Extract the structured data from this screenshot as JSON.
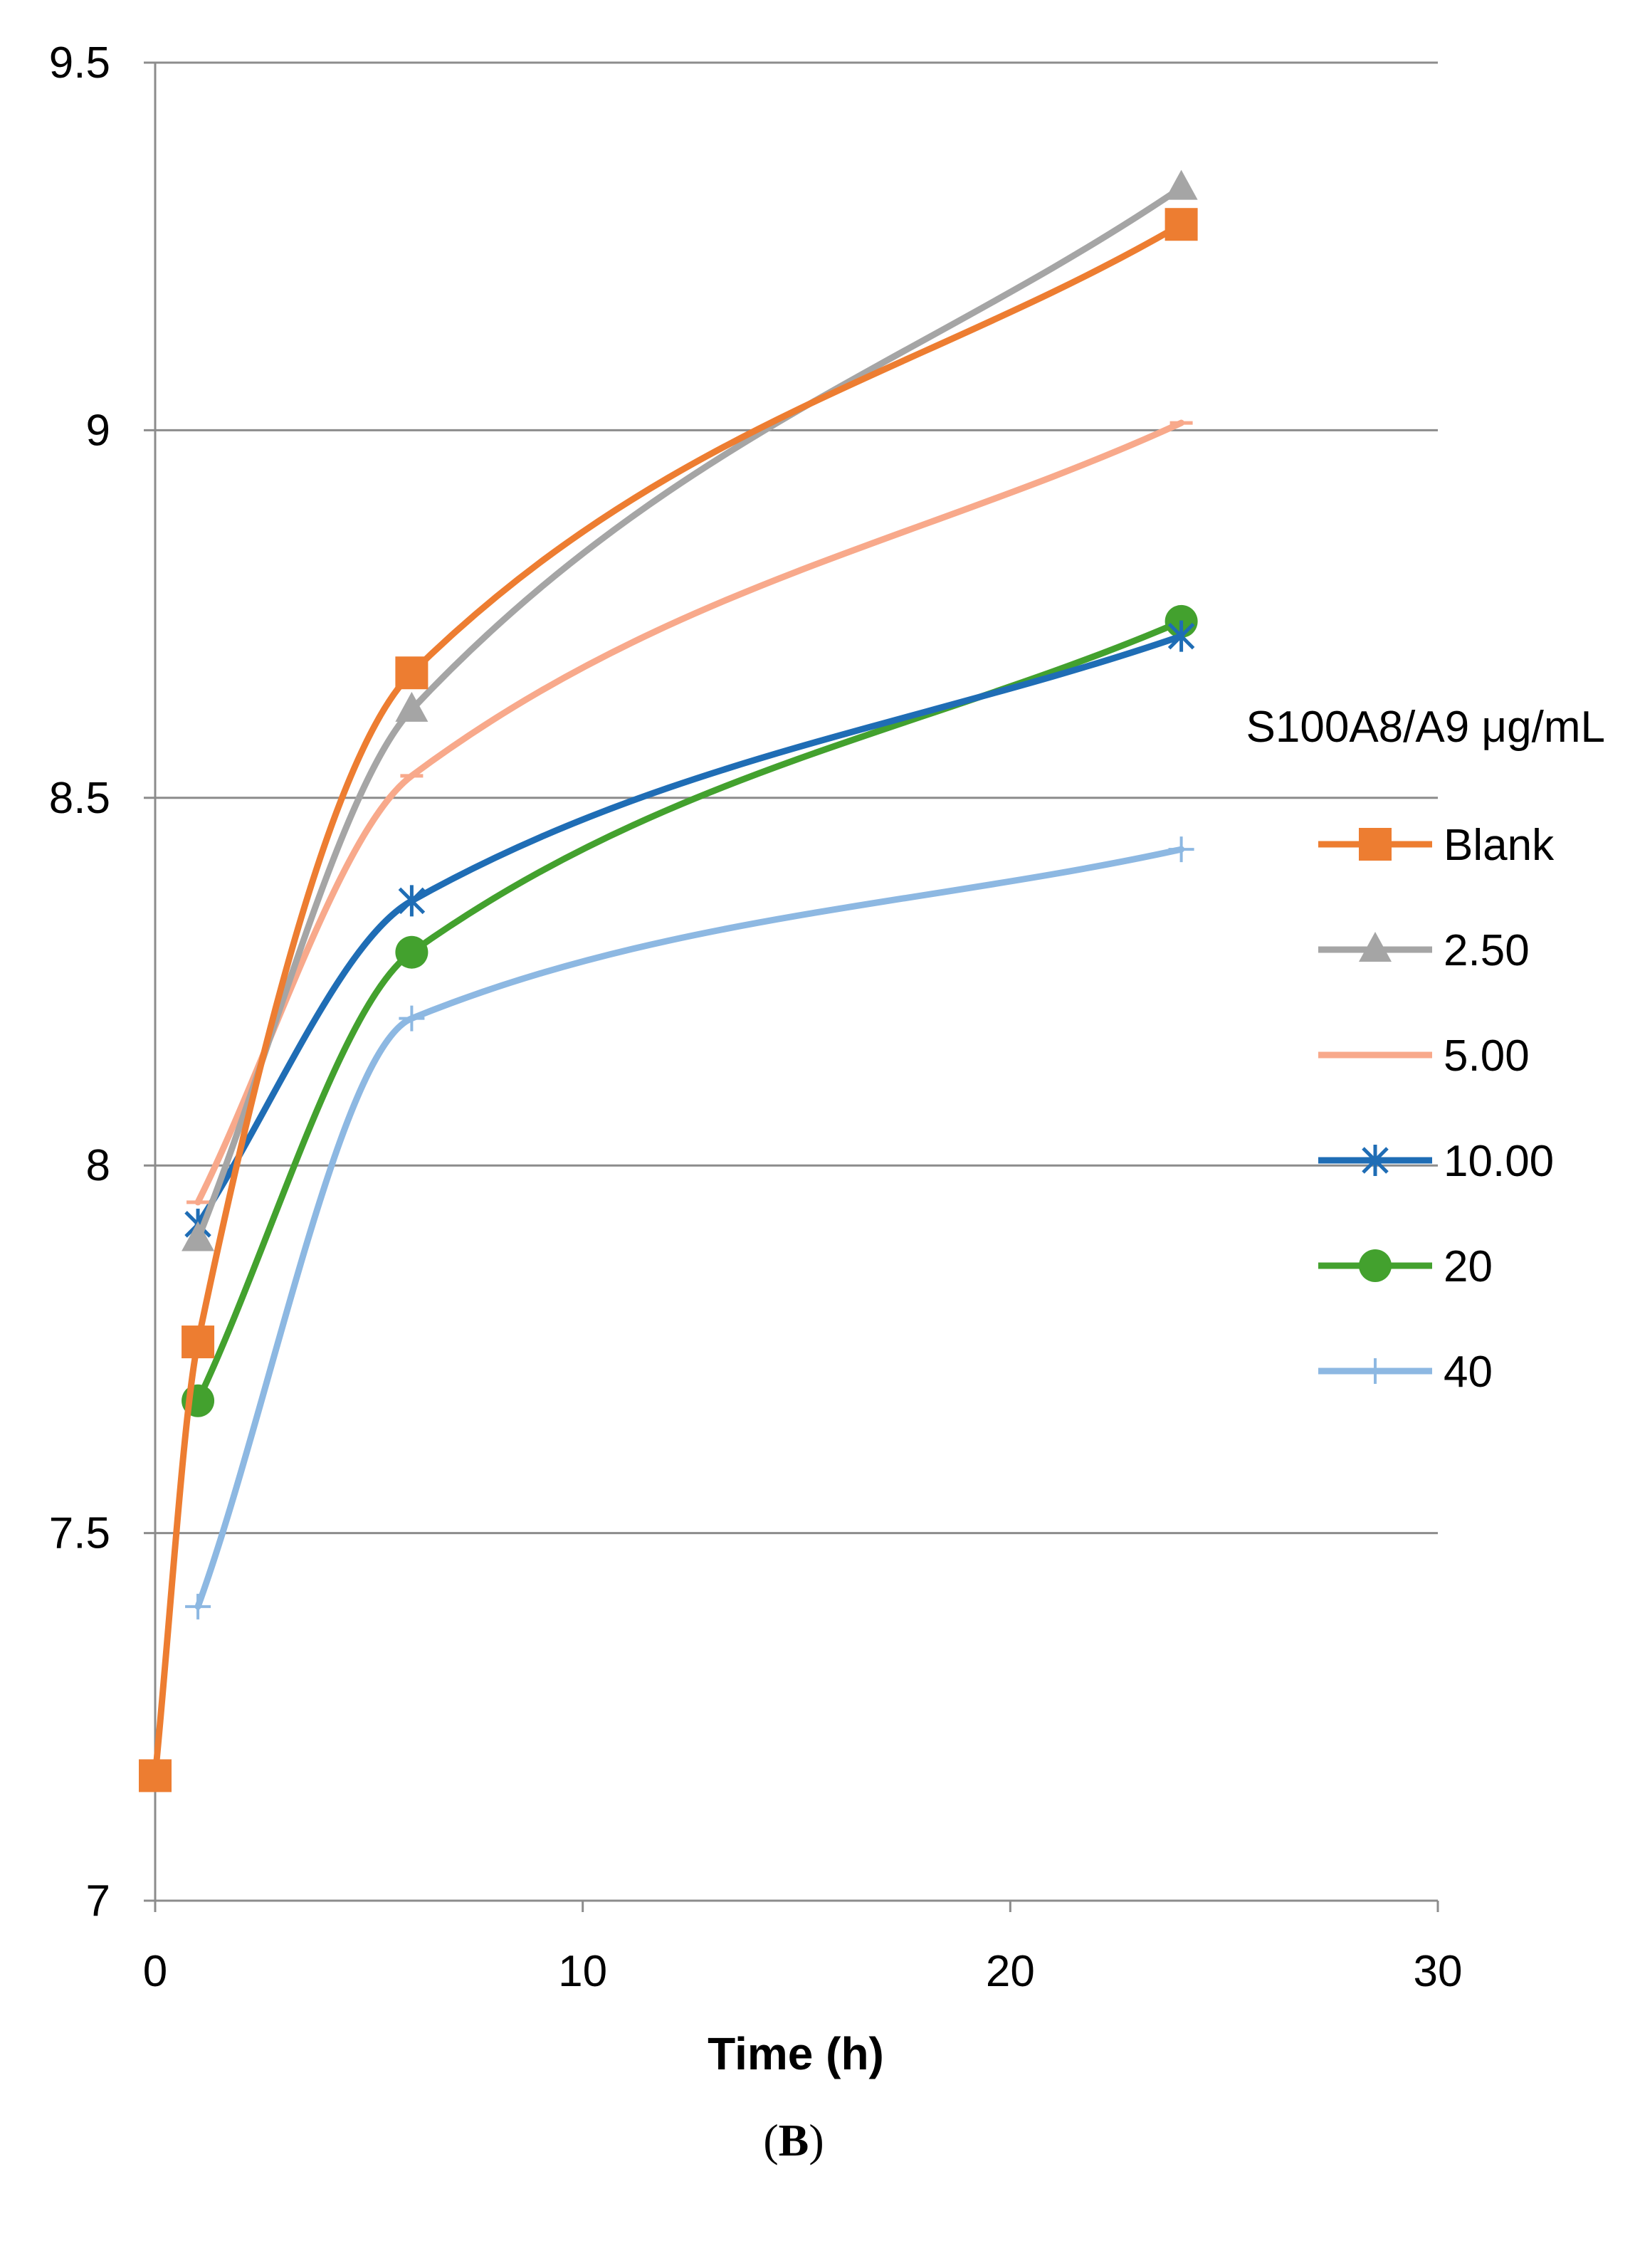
{
  "chart_data": {
    "type": "line",
    "title": "",
    "xlabel": "Time (h)",
    "ylabel": "",
    "xlim": [
      0,
      30
    ],
    "ylim": [
      7,
      9.5
    ],
    "x_ticks": [
      0,
      10,
      20,
      30
    ],
    "y_ticks": [
      7,
      7.5,
      8,
      8.5,
      9,
      9.5
    ],
    "x_tick_labels": [
      "0",
      "10",
      "20",
      "30"
    ],
    "y_tick_labels": [
      "7",
      "7.5",
      "8",
      "8.5",
      "9",
      "9.5"
    ],
    "grid": "horizontal",
    "legend_title": "S100A8/A9 μg/mL",
    "legend_position": "right",
    "series": [
      {
        "name": "Blank",
        "color": "#ED7D31",
        "marker": "square",
        "x": [
          0,
          1,
          6,
          24
        ],
        "y": [
          7.17,
          7.76,
          8.67,
          9.28
        ]
      },
      {
        "name": "2.50",
        "color": "#A5A5A5",
        "marker": "triangle",
        "x": [
          1,
          6,
          24
        ],
        "y": [
          7.9,
          8.62,
          9.33
        ]
      },
      {
        "name": "5.00",
        "color": "#F8A98B",
        "marker": "dash",
        "x": [
          1,
          6,
          24
        ],
        "y": [
          7.95,
          8.53,
          9.01
        ]
      },
      {
        "name": "10.00",
        "color": "#1F6DB5",
        "marker": "star",
        "x": [
          1,
          6,
          24
        ],
        "y": [
          7.92,
          8.36,
          8.72
        ]
      },
      {
        "name": "20",
        "color": "#43A12E",
        "marker": "circle",
        "x": [
          1,
          6,
          24
        ],
        "y": [
          7.68,
          8.29,
          8.74
        ]
      },
      {
        "name": "40",
        "color": "#8DB8E2",
        "marker": "plus",
        "x": [
          1,
          6,
          24
        ],
        "y": [
          7.4,
          8.2,
          8.43
        ]
      }
    ]
  },
  "panel_label": {
    "open": "(",
    "letter": "B",
    "close": ")"
  }
}
